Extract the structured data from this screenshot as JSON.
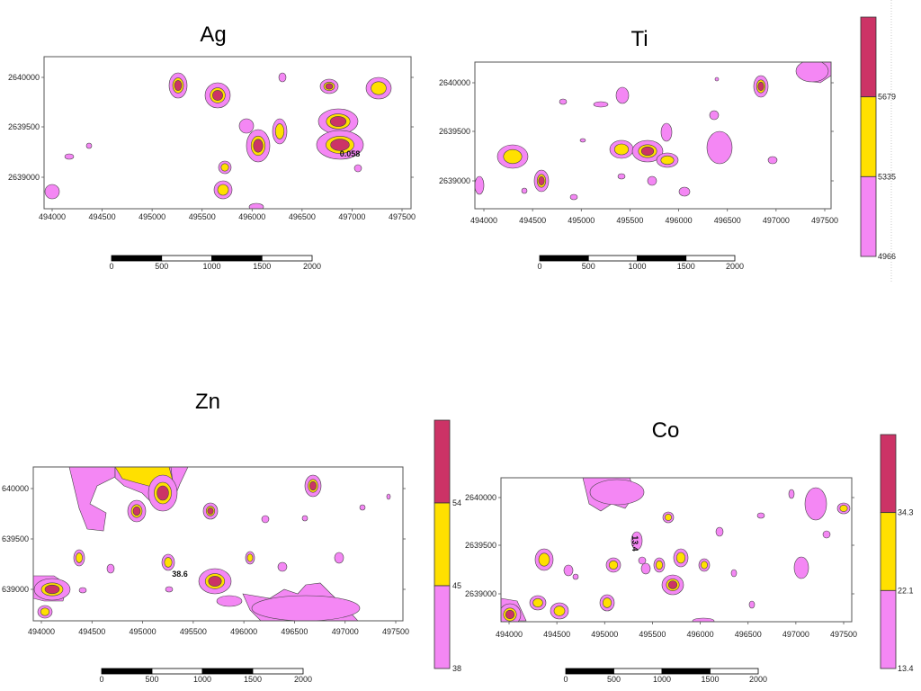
{
  "colors": {
    "low": "#f487f4",
    "mid": "#ffe000",
    "high": "#cc3366",
    "outline": "#444444"
  },
  "panels": [
    {
      "id": "ag",
      "title": "Ag",
      "x_ticks": [
        "494000",
        "494500",
        "495000",
        "495500",
        "496000",
        "496500",
        "497000",
        "497500"
      ],
      "y_ticks": [
        "2640000",
        "2639500",
        "2639000"
      ],
      "scale_labels": [
        "0",
        "500",
        "1000",
        "1500",
        "2000"
      ],
      "annotations": [
        "0.058"
      ],
      "legend": null
    },
    {
      "id": "ti",
      "title": "Ti",
      "x_ticks": [
        "494000",
        "494500",
        "495000",
        "495500",
        "496000",
        "496500",
        "497000",
        "497500"
      ],
      "y_ticks": [
        "2640000",
        "2639500",
        "2639000"
      ],
      "scale_labels": [
        "0",
        "500",
        "1000",
        "1500",
        "2000"
      ],
      "annotations": [],
      "legend": [
        "5679",
        "5335",
        "4966"
      ]
    },
    {
      "id": "zn",
      "title": "Zn",
      "x_ticks": [
        "494000",
        "494500",
        "495000",
        "495500",
        "496000",
        "496500",
        "497000",
        "497500"
      ],
      "y_ticks": [
        "640000",
        "639500",
        "639000"
      ],
      "scale_labels": [
        "0",
        "500",
        "1000",
        "1500",
        "2000"
      ],
      "annotations": [
        "38.6"
      ],
      "legend": [
        "54",
        "45",
        "38"
      ]
    },
    {
      "id": "co",
      "title": "Co",
      "x_ticks": [
        "494000",
        "494500",
        "495000",
        "495500",
        "496000",
        "496500",
        "497000",
        "497500"
      ],
      "y_ticks": [
        "2640000",
        "2639500",
        "2639000"
      ],
      "scale_labels": [
        "0",
        "500",
        "1000",
        "1500",
        "2000"
      ],
      "annotations": [
        "13.4"
      ],
      "legend": [
        "34.3",
        "22.1",
        "13.4"
      ]
    }
  ]
}
